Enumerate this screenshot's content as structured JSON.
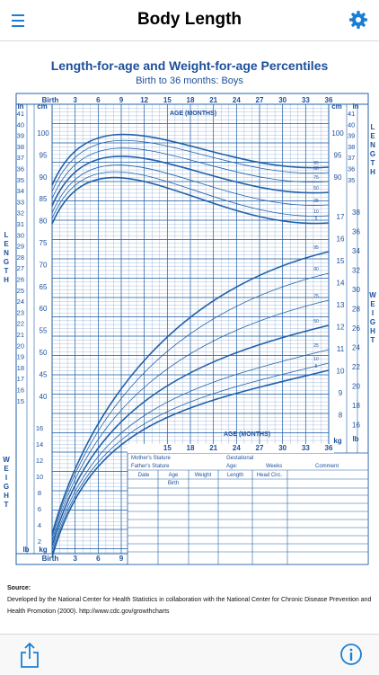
{
  "nav": {
    "title": "Body Length",
    "menu_icon": "hamburger-menu-icon",
    "settings_icon": "gear-icon"
  },
  "chart": {
    "title": "Length-for-age and Weight-for-age Percentiles",
    "subtitle": "Birth to 36 months: Boys",
    "age_header": "AGE (MONTHS)",
    "top_age_ticks": [
      "Birth",
      "3",
      "6",
      "9",
      "12",
      "15",
      "18",
      "21",
      "24",
      "27",
      "30",
      "33",
      "36"
    ],
    "bottom_age_ticks": [
      "Birth",
      "3",
      "6",
      "9"
    ],
    "inner_age_ticks": [
      "15",
      "18",
      "21",
      "24",
      "27",
      "30",
      "33",
      "36"
    ],
    "length_in_ticks_left": [
      "41",
      "40",
      "39",
      "38",
      "37",
      "36",
      "35",
      "34",
      "33",
      "32",
      "31",
      "30",
      "29",
      "28",
      "27",
      "26",
      "25",
      "24",
      "23",
      "22",
      "21",
      "20",
      "19",
      "18",
      "17",
      "16",
      "15"
    ],
    "length_cm_ticks_left": [
      "100",
      "95",
      "90",
      "85",
      "80",
      "75",
      "70",
      "65",
      "60",
      "55",
      "50",
      "45",
      "40"
    ],
    "length_cm_ticks_right": [
      "100",
      "95",
      "90"
    ],
    "length_in_ticks_right": [
      "41",
      "40",
      "39",
      "38",
      "37",
      "36",
      "35"
    ],
    "weight_kg_ticks_left": [
      "16",
      "14",
      "12",
      "10",
      "8",
      "6",
      "4",
      "2"
    ],
    "weight_lb_ticks_left": [
      "16",
      "15",
      "14",
      "13",
      "12",
      "11",
      "10",
      "9",
      "8",
      "7",
      "6",
      "5",
      "4"
    ],
    "weight_kg_ticks_right": [
      "17",
      "16",
      "15",
      "14",
      "13",
      "12",
      "11",
      "10",
      "9",
      "8"
    ],
    "weight_lb_ticks_right": [
      "38",
      "36",
      "34",
      "32",
      "30",
      "28",
      "26",
      "24",
      "22",
      "20",
      "18",
      "16"
    ],
    "unit_in": "in",
    "unit_cm": "cm",
    "unit_kg": "kg",
    "unit_lb": "lb",
    "side_length": "LENGTH",
    "side_weight": "WEIGHT",
    "percentile_labels": [
      "95",
      "90",
      "75",
      "50",
      "25",
      "10",
      "5"
    ],
    "form": {
      "mothers_stature": "Mother's Stature",
      "fathers_stature": "Father's Stature",
      "gestational": "Gestational",
      "age_label": "Age:",
      "weeks": "Weeks",
      "comment": "Comment",
      "col_date": "Date",
      "col_age": "Age",
      "col_weight": "Weight",
      "col_length": "Length",
      "col_head": "Head Circ.",
      "birth": "Birth"
    }
  },
  "source": {
    "label": "Source:",
    "text": "Developed by the National Center for Health Statistics in collaboration with the National Center for Chronic Disease Prevention and Health Promotion (2000). http://www.cdc.gov/growthcharts"
  },
  "toolbar": {
    "share_icon": "share-icon",
    "info_icon": "info-icon"
  },
  "colors": {
    "accent": "#1a7fd4",
    "chart_blue": "#2060a8",
    "title_blue": "#1c4f9c"
  }
}
